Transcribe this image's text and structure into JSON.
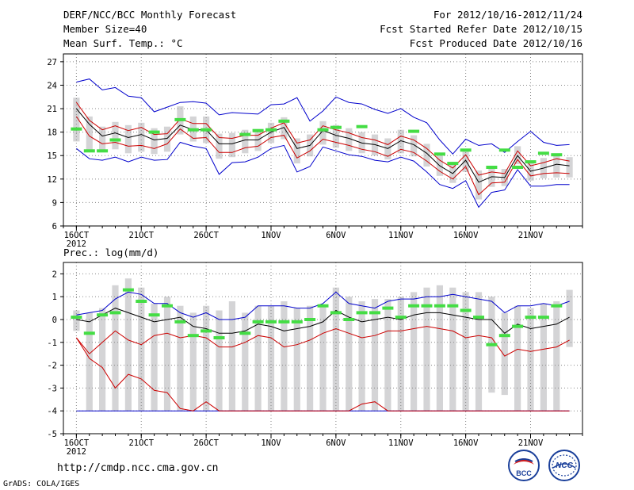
{
  "header": {
    "title": "DERF/NCC/BCC Monthly Forecast",
    "member_size": "Member Size=40",
    "variable": "Mean Surf. Temp.: °C",
    "period": "For 2012/10/16-2012/11/24",
    "refer_date": "Fcst Started Refer Date 2012/10/15",
    "produced_date": "Fcst Produced Date 2012/10/16"
  },
  "footer": {
    "url": "http://cmdp.ncc.cma.gov.cn",
    "credit": "GrADS: COLA/IGES",
    "logo_left_text": "BCC",
    "logo_right_text": "NCC"
  },
  "colors": {
    "ensemble_envelope": "#0000cc",
    "percentile_lines": "#cc0000",
    "ensemble_mean": "#000000",
    "observation_marker": "#44dd44",
    "spread_box": "#d4d4d6",
    "grid": "#888888"
  },
  "chart_data": [
    {
      "type": "line",
      "title": "Mean Surf. Temp.: °C",
      "xlabel": "",
      "ylabel": "",
      "ylim": [
        6,
        28
      ],
      "yticks": [
        6,
        9,
        12,
        15,
        18,
        21,
        24,
        27
      ],
      "xlim": [
        15,
        55
      ],
      "xticks": [
        16,
        21,
        26,
        31,
        36,
        41,
        46,
        51
      ],
      "xtick_labels": [
        "16OCT",
        "21OCT",
        "26OCT",
        "1NOV",
        "6NOV",
        "11NOV",
        "16NOV",
        "21NOV"
      ],
      "x_sublabel": "2012",
      "x": [
        16,
        17,
        18,
        19,
        20,
        21,
        22,
        23,
        24,
        25,
        26,
        27,
        28,
        29,
        30,
        31,
        32,
        33,
        34,
        35,
        36,
        37,
        38,
        39,
        40,
        41,
        42,
        43,
        44,
        45,
        46,
        47,
        48,
        49,
        50,
        51,
        52,
        53,
        54
      ],
      "series": [
        {
          "name": "max",
          "color": "#0000cc",
          "values": [
            24.4,
            24.8,
            23.4,
            23.7,
            22.6,
            22.4,
            20.6,
            21.2,
            21.8,
            21.9,
            21.7,
            20.2,
            20.5,
            20.4,
            20.3,
            21.5,
            21.6,
            22.4,
            19.4,
            20.7,
            22.5,
            21.8,
            21.6,
            20.9,
            20.4,
            21.0,
            19.9,
            19.2,
            17.0,
            15.2,
            17.1,
            16.3,
            16.5,
            15.4,
            16.8,
            18.1,
            16.7,
            16.3,
            16.4
          ]
        },
        {
          "name": "p75",
          "color": "#cc0000",
          "values": [
            21.8,
            19.5,
            18.3,
            18.8,
            18.2,
            18.6,
            17.7,
            17.8,
            19.7,
            19.1,
            19.1,
            17.3,
            17.2,
            17.6,
            17.6,
            18.5,
            19.2,
            16.6,
            17.0,
            18.8,
            18.3,
            17.9,
            17.3,
            17.0,
            16.4,
            17.5,
            17.0,
            15.9,
            14.4,
            13.4,
            15.1,
            12.5,
            12.9,
            12.7,
            15.6,
            13.7,
            14.1,
            14.6,
            14.3
          ]
        },
        {
          "name": "mean",
          "color": "#000000",
          "values": [
            21.0,
            19.0,
            17.5,
            17.9,
            17.3,
            17.7,
            17.0,
            17.2,
            18.9,
            18.3,
            18.3,
            16.5,
            16.5,
            17.0,
            17.0,
            18.0,
            18.6,
            15.9,
            16.3,
            18.2,
            17.6,
            17.2,
            16.6,
            16.4,
            15.9,
            16.9,
            16.4,
            15.3,
            13.7,
            12.7,
            14.4,
            11.6,
            12.3,
            12.2,
            15.0,
            13.0,
            13.4,
            13.9,
            13.7
          ]
        },
        {
          "name": "p25",
          "color": "#cc0000",
          "values": [
            20.0,
            17.5,
            16.5,
            16.7,
            16.2,
            16.3,
            15.9,
            16.5,
            18.4,
            17.2,
            17.3,
            15.4,
            15.4,
            16.0,
            16.2,
            17.3,
            17.6,
            14.7,
            15.6,
            17.1,
            16.7,
            16.3,
            15.8,
            15.5,
            14.9,
            15.8,
            15.4,
            14.3,
            13.0,
            12.0,
            13.6,
            10.0,
            11.5,
            11.6,
            14.5,
            12.4,
            12.7,
            12.8,
            12.7
          ]
        },
        {
          "name": "min",
          "color": "#0000cc",
          "values": [
            15.9,
            14.6,
            14.4,
            14.8,
            14.2,
            14.8,
            14.4,
            14.5,
            16.7,
            16.2,
            15.9,
            12.6,
            14.1,
            14.2,
            14.8,
            15.9,
            16.3,
            12.9,
            13.6,
            16.1,
            15.6,
            15.1,
            14.9,
            14.4,
            14.2,
            14.8,
            14.3,
            12.9,
            11.3,
            10.8,
            11.8,
            8.4,
            10.3,
            10.6,
            13.2,
            11.1,
            11.1,
            11.3,
            11.3
          ]
        },
        {
          "name": "spread_box_high",
          "color": "#d4d4d6",
          "values": [
            22.4,
            20.0,
            18.7,
            19.3,
            18.9,
            19.2,
            18.5,
            18.7,
            21.3,
            20.0,
            20.0,
            17.8,
            17.9,
            18.3,
            18.3,
            19.2,
            19.9,
            17.2,
            17.7,
            19.4,
            18.9,
            18.5,
            18.0,
            17.7,
            17.2,
            18.3,
            17.6,
            16.5,
            15.0,
            14.1,
            15.7,
            13.1,
            13.4,
            13.3,
            16.2,
            14.3,
            14.7,
            15.2,
            14.8
          ]
        },
        {
          "name": "spread_box_low",
          "color": "#d4d4d6",
          "values": [
            16.8,
            15.6,
            15.4,
            15.8,
            15.3,
            15.5,
            15.2,
            15.5,
            17.7,
            16.8,
            16.6,
            14.6,
            14.8,
            15.3,
            15.6,
            16.6,
            17.1,
            14.0,
            14.9,
            16.4,
            16.0,
            15.6,
            15.3,
            15.0,
            14.5,
            15.3,
            14.9,
            13.6,
            12.4,
            11.5,
            12.9,
            9.4,
            11.0,
            11.1,
            13.9,
            11.8,
            12.1,
            12.2,
            12.2
          ]
        },
        {
          "name": "observation",
          "color": "#44dd44",
          "values": [
            18.4,
            15.6,
            15.6,
            17.0,
            null,
            null,
            18.0,
            null,
            19.6,
            18.3,
            18.3,
            null,
            null,
            17.7,
            18.2,
            18.3,
            19.4,
            null,
            null,
            18.3,
            18.6,
            null,
            18.7,
            null,
            null,
            null,
            18.1,
            null,
            15.2,
            14.0,
            15.7,
            null,
            13.5,
            15.7,
            13.5,
            14.2,
            15.3,
            15.1,
            null
          ]
        }
      ]
    },
    {
      "type": "line",
      "title": "Prec.: log(mm/d)",
      "xlabel": "",
      "ylabel": "",
      "ylim": [
        -5,
        2.5
      ],
      "yticks": [
        -5,
        -4,
        -3,
        -2,
        -1,
        0,
        1,
        2
      ],
      "xlim": [
        15,
        55
      ],
      "xticks": [
        16,
        21,
        26,
        31,
        36,
        41,
        46,
        51
      ],
      "xtick_labels": [
        "16OCT",
        "21OCT",
        "26OCT",
        "1NOV",
        "6NOV",
        "11NOV",
        "16NOV",
        "21NOV"
      ],
      "x_sublabel": "2012",
      "x": [
        16,
        17,
        18,
        19,
        20,
        21,
        22,
        23,
        24,
        25,
        26,
        27,
        28,
        29,
        30,
        31,
        32,
        33,
        34,
        35,
        36,
        37,
        38,
        39,
        40,
        41,
        42,
        43,
        44,
        45,
        46,
        47,
        48,
        49,
        50,
        51,
        52,
        53,
        54
      ],
      "series": [
        {
          "name": "max",
          "color": "#0000cc",
          "values": [
            0.2,
            0.3,
            0.4,
            0.9,
            1.2,
            1.1,
            0.7,
            0.7,
            0.3,
            0.1,
            0.3,
            0.0,
            0.0,
            0.1,
            0.6,
            0.6,
            0.6,
            0.5,
            0.5,
            0.7,
            1.2,
            0.7,
            0.6,
            0.5,
            0.8,
            0.9,
            0.9,
            1.0,
            1.0,
            1.1,
            1.0,
            0.9,
            0.8,
            0.3,
            0.6,
            0.6,
            0.7,
            0.6,
            0.8
          ]
        },
        {
          "name": "mean",
          "color": "#000000",
          "values": [
            0.0,
            -0.1,
            0.2,
            0.5,
            0.3,
            0.1,
            -0.1,
            0.0,
            0.1,
            -0.3,
            -0.4,
            -0.6,
            -0.6,
            -0.5,
            -0.2,
            -0.3,
            -0.5,
            -0.4,
            -0.3,
            -0.1,
            0.4,
            0.1,
            -0.1,
            0.0,
            0.1,
            0.0,
            0.2,
            0.3,
            0.3,
            0.2,
            0.1,
            0.0,
            0.0,
            -0.6,
            -0.2,
            -0.4,
            -0.3,
            -0.2,
            0.1
          ]
        },
        {
          "name": "p25",
          "color": "#cc0000",
          "values": [
            -0.8,
            -1.7,
            -2.1,
            -3.0,
            -2.4,
            -2.6,
            -3.1,
            -3.2,
            -3.9,
            -4.0,
            -3.6,
            -4.0,
            -4.0,
            -4.0,
            -4.0,
            -4.0,
            -4.0,
            -4.0,
            -4.0,
            -4.0,
            -4.0,
            -4.0,
            -3.7,
            -3.6,
            -4.0,
            -4.0,
            -4.0,
            -4.0,
            -4.0,
            -4.0,
            -4.0,
            -4.0,
            -4.0,
            -4.0,
            -4.0,
            -4.0,
            -4.0,
            -4.0,
            -4.0
          ]
        },
        {
          "name": "p75",
          "color": "#cc0000",
          "values": [
            -0.8,
            -1.5,
            -1.0,
            -0.5,
            -0.9,
            -1.1,
            -0.7,
            -0.6,
            -0.8,
            -0.7,
            -0.8,
            -1.2,
            -1.2,
            -1.0,
            -0.7,
            -0.8,
            -1.2,
            -1.1,
            -0.9,
            -0.6,
            -0.4,
            -0.6,
            -0.8,
            -0.7,
            -0.5,
            -0.5,
            -0.4,
            -0.3,
            -0.4,
            -0.5,
            -0.8,
            -0.7,
            -0.8,
            -1.6,
            -1.3,
            -1.4,
            -1.3,
            -1.2,
            -0.9
          ]
        },
        {
          "name": "min",
          "color": "#0000cc",
          "values": [
            -4.0,
            -4.0,
            -4.0,
            -4.0,
            -4.0,
            -4.0,
            -4.0,
            -4.0,
            -4.0,
            -4.0,
            -4.0,
            -4.0,
            -4.0,
            -4.0,
            -4.0,
            -4.0,
            -4.0,
            -4.0,
            -4.0,
            -4.0,
            -4.0,
            -4.0,
            -4.0,
            -4.0,
            -4.0,
            -4.0,
            -4.0,
            -4.0,
            -4.0,
            -4.0,
            -4.0,
            -4.0,
            -4.0,
            -4.0,
            -4.0,
            -4.0,
            -4.0,
            -4.0,
            -4.0
          ]
        },
        {
          "name": "spread_box_high",
          "color": "#d4d4d6",
          "values": [
            0.4,
            0.3,
            0.5,
            1.5,
            1.8,
            1.4,
            0.7,
            1.0,
            0.6,
            0.3,
            0.6,
            0.4,
            0.8,
            0.3,
            0.6,
            0.6,
            0.8,
            0.5,
            0.6,
            0.6,
            1.4,
            1.0,
            0.8,
            0.9,
            0.9,
            1.0,
            1.2,
            1.4,
            1.5,
            1.4,
            1.2,
            1.2,
            1.0,
            0.3,
            0.6,
            0.5,
            0.7,
            0.8,
            1.3
          ]
        },
        {
          "name": "spread_box_low",
          "color": "#d4d4d6",
          "values": [
            -0.5,
            -4.0,
            -4.0,
            -4.0,
            -4.0,
            -4.0,
            -4.0,
            -4.0,
            -4.0,
            -4.0,
            -4.0,
            -4.0,
            -4.0,
            -4.0,
            -4.0,
            -4.0,
            -4.0,
            -4.0,
            -4.0,
            -4.0,
            -4.0,
            -4.0,
            -4.0,
            -4.0,
            -4.0,
            -4.0,
            -4.0,
            -4.0,
            -4.0,
            -4.0,
            -4.0,
            -4.0,
            -3.2,
            -3.3,
            -4.0,
            -4.0,
            -4.0,
            -4.0,
            -1.2
          ]
        },
        {
          "name": "observation",
          "color": "#44dd44",
          "values": [
            0.1,
            -0.6,
            0.2,
            0.3,
            1.3,
            0.8,
            0.2,
            0.6,
            -0.1,
            -0.7,
            -0.5,
            -0.8,
            null,
            -0.6,
            -0.1,
            -0.1,
            -0.1,
            -0.1,
            0.0,
            0.6,
            0.3,
            0.0,
            0.3,
            0.3,
            0.5,
            0.1,
            0.6,
            0.6,
            0.6,
            0.6,
            0.4,
            0.1,
            -1.1,
            -0.7,
            -0.3,
            0.1,
            0.1,
            0.6,
            null
          ]
        }
      ]
    }
  ]
}
